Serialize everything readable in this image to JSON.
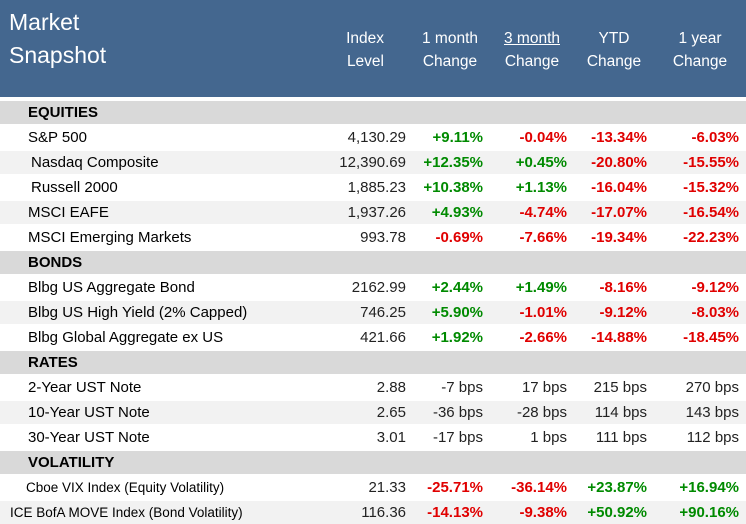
{
  "header": {
    "title_line1": "Market",
    "title_line2": "Snapshot",
    "col_index": [
      "Index",
      "Level"
    ],
    "col_1m": [
      "1 month",
      "Change"
    ],
    "col_3m": [
      "3 month",
      "Change"
    ],
    "col_ytd": [
      "YTD",
      "Change"
    ],
    "col_1y": [
      "1 year",
      "Change"
    ]
  },
  "sections": {
    "equities": "EQUITIES",
    "bonds": "BONDS",
    "rates": "RATES",
    "volatility": "VOLATILITY"
  },
  "rows": [
    {
      "name": "S&P 500",
      "level": "4,130.29",
      "m1": "+9.11%",
      "m3": "-0.04%",
      "ytd": "-13.34%",
      "y1": "-6.03%"
    },
    {
      "name": "Nasdaq Composite",
      "level": "12,390.69",
      "m1": "+12.35%",
      "m3": "+0.45%",
      "ytd": "-20.80%",
      "y1": "-15.55%"
    },
    {
      "name": "Russell 2000",
      "level": "1,885.23",
      "m1": "+10.38%",
      "m3": "+1.13%",
      "ytd": "-16.04%",
      "y1": "-15.32%"
    },
    {
      "name": "MSCI EAFE",
      "level": "1,937.26",
      "m1": "+4.93%",
      "m3": "-4.74%",
      "ytd": "-17.07%",
      "y1": "-16.54%"
    },
    {
      "name": "MSCI Emerging Markets",
      "level": "993.78",
      "m1": "-0.69%",
      "m3": "-7.66%",
      "ytd": "-19.34%",
      "y1": "-22.23%"
    },
    {
      "name": "Blbg US Aggregate Bond",
      "level": "2162.99",
      "m1": "+2.44%",
      "m3": "+1.49%",
      "ytd": "-8.16%",
      "y1": "-9.12%"
    },
    {
      "name": "Blbg US High Yield (2% Capped)",
      "level": "746.25",
      "m1": "+5.90%",
      "m3": "-1.01%",
      "ytd": "-9.12%",
      "y1": "-8.03%"
    },
    {
      "name": "Blbg Global Aggregate ex US",
      "level": "421.66",
      "m1": "+1.92%",
      "m3": "-2.66%",
      "ytd": "-14.88%",
      "y1": "-18.45%"
    },
    {
      "name": "2-Year UST Note",
      "level": "2.88",
      "m1": "-7 bps",
      "m3": "17 bps",
      "ytd": "215 bps",
      "y1": "270 bps"
    },
    {
      "name": "10-Year UST Note",
      "level": "2.65",
      "m1": "-36 bps",
      "m3": "-28 bps",
      "ytd": "114 bps",
      "y1": "143 bps"
    },
    {
      "name": "30-Year UST Note",
      "level": "3.01",
      "m1": "-17 bps",
      "m3": "1 bps",
      "ytd": "111 bps",
      "y1": "112 bps"
    },
    {
      "name": "Cboe VIX Index (Equity Volatility)",
      "level": "21.33",
      "m1": "-25.71%",
      "m3": "-36.14%",
      "ytd": "+23.87%",
      "y1": "+16.94%"
    },
    {
      "name": "ICE BofA MOVE Index (Bond Volatility)",
      "level": "116.36",
      "m1": "-14.13%",
      "m3": "-9.38%",
      "ytd": "+50.92%",
      "y1": "+90.16%"
    }
  ],
  "colors": {
    "header_bg": "#44678f",
    "section_bg": "#d9d9d9",
    "positive": "#008a00",
    "negative": "#e00000"
  }
}
